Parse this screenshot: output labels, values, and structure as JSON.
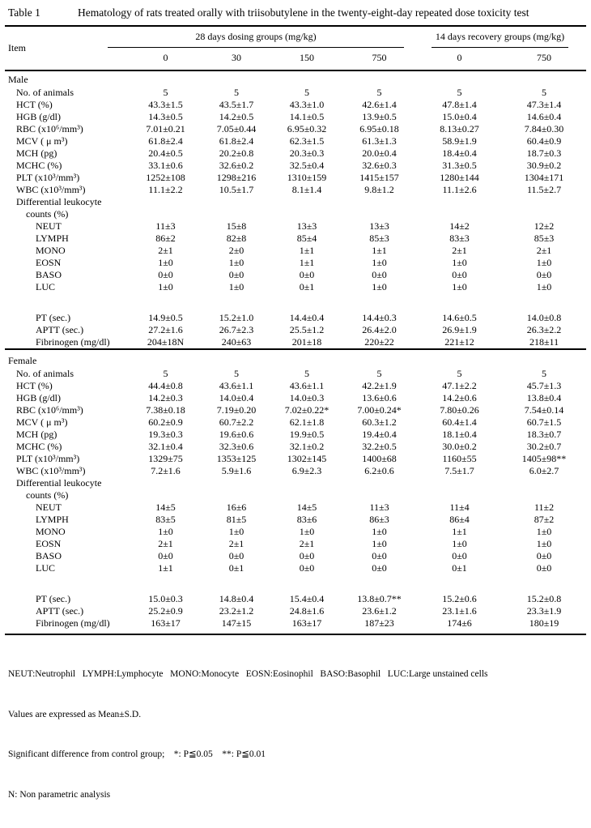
{
  "table": {
    "label": "Table 1",
    "title": "Hematology of rats treated orally with triisobutylene in the twenty-eight-day repeated dose toxicity test",
    "item_header": "Item",
    "group_headers": [
      "28 days dosing groups (mg/kg)",
      "14 days recovery groups (mg/kg)"
    ],
    "doses": [
      "0",
      "30",
      "150",
      "750",
      "0",
      "750"
    ],
    "colors": {
      "text": "#000000",
      "background": "#ffffff",
      "rule": "#000000"
    },
    "sections": [
      {
        "name": "Male",
        "rows": [
          {
            "label": "No. of animals",
            "indent": 1,
            "values": [
              "5",
              "5",
              "5",
              "5",
              "5",
              "5"
            ]
          },
          {
            "label": "HCT (%)",
            "indent": 1,
            "values": [
              "43.3±1.5",
              "43.5±1.7",
              "43.3±1.0",
              "42.6±1.4",
              "47.8±1.4",
              "47.3±1.4"
            ]
          },
          {
            "label": "HGB (g/dl)",
            "indent": 1,
            "values": [
              "14.3±0.5",
              "14.2±0.5",
              "14.1±0.5",
              "13.9±0.5",
              "15.0±0.4",
              "14.6±0.4"
            ]
          },
          {
            "label": "RBC (x10⁶/mm³)",
            "indent": 1,
            "values": [
              "7.01±0.21",
              "7.05±0.44",
              "6.95±0.32",
              "6.95±0.18",
              "8.13±0.27",
              "7.84±0.30"
            ]
          },
          {
            "label": "MCV ( μ m³)",
            "indent": 1,
            "values": [
              "61.8±2.4",
              "61.8±2.4",
              "62.3±1.5",
              "61.3±1.3",
              "58.9±1.9",
              "60.4±0.9"
            ]
          },
          {
            "label": "MCH (pg)",
            "indent": 1,
            "values": [
              "20.4±0.5",
              "20.2±0.8",
              "20.3±0.3",
              "20.0±0.4",
              "18.4±0.4",
              "18.7±0.3"
            ]
          },
          {
            "label": "MCHC (%)",
            "indent": 1,
            "values": [
              "33.1±0.6",
              "32.6±0.2",
              "32.5±0.4",
              "32.6±0.3",
              "31.3±0.5",
              "30.9±0.2"
            ]
          },
          {
            "label": "PLT (x10³/mm³)",
            "indent": 1,
            "values": [
              "1252±108",
              "1298±216",
              "1310±159",
              "1415±157",
              "1280±144",
              "1304±171"
            ]
          },
          {
            "label": "WBC (x10³/mm³)",
            "indent": 1,
            "values": [
              "11.1±2.2",
              "10.5±1.7",
              "8.1±1.4",
              "9.8±1.2",
              "11.1±2.6",
              "11.5±2.7"
            ]
          },
          {
            "label": "Differential leukocyte",
            "indent": 1,
            "values": [
              "",
              "",
              "",
              "",
              "",
              ""
            ]
          },
          {
            "label": "counts (%)",
            "indent": 2,
            "values": [
              "",
              "",
              "",
              "",
              "",
              ""
            ]
          },
          {
            "label": "NEUT",
            "indent": 3,
            "values": [
              "11±3",
              "15±8",
              "13±3",
              "13±3",
              "14±2",
              "12±2"
            ]
          },
          {
            "label": "LYMPH",
            "indent": 3,
            "values": [
              "86±2",
              "82±8",
              "85±4",
              "85±3",
              "83±3",
              "85±3"
            ]
          },
          {
            "label": "MONO",
            "indent": 3,
            "values": [
              "2±1",
              "2±0",
              "1±1",
              "1±1",
              "2±1",
              "2±1"
            ]
          },
          {
            "label": "EOSN",
            "indent": 3,
            "values": [
              "1±0",
              "1±0",
              "1±1",
              "1±0",
              "1±0",
              "1±0"
            ]
          },
          {
            "label": "BASO",
            "indent": 3,
            "values": [
              "0±0",
              "0±0",
              "0±0",
              "0±0",
              "0±0",
              "0±0"
            ]
          },
          {
            "label": "LUC",
            "indent": 3,
            "values": [
              "1±0",
              "1±0",
              "0±1",
              "1±0",
              "1±0",
              "1±0"
            ]
          },
          {
            "label": "",
            "indent": 0,
            "spacer": true,
            "values": [
              "",
              "",
              "",
              "",
              "",
              ""
            ]
          },
          {
            "label": "PT (sec.)",
            "indent": 3,
            "values": [
              "14.9±0.5",
              "15.2±1.0",
              "14.4±0.4",
              "14.4±0.3",
              "14.6±0.5",
              "14.0±0.8"
            ]
          },
          {
            "label": "APTT (sec.)",
            "indent": 3,
            "values": [
              "27.2±1.6",
              "26.7±2.3",
              "25.5±1.2",
              "26.4±2.0",
              "26.9±1.9",
              "26.3±2.2"
            ]
          },
          {
            "label": "Fibrinogen (mg/dl)",
            "indent": 3,
            "values": [
              "204±18N",
              "240±63",
              "201±18",
              "220±22",
              "221±12",
              "218±11"
            ]
          }
        ]
      },
      {
        "name": "Female",
        "rows": [
          {
            "label": "No. of animals",
            "indent": 1,
            "values": [
              "5",
              "5",
              "5",
              "5",
              "5",
              "5"
            ]
          },
          {
            "label": "HCT (%)",
            "indent": 1,
            "values": [
              "44.4±0.8",
              "43.6±1.1",
              "43.6±1.1",
              "42.2±1.9",
              "47.1±2.2",
              "45.7±1.3"
            ]
          },
          {
            "label": "HGB (g/dl)",
            "indent": 1,
            "values": [
              "14.2±0.3",
              "14.0±0.4",
              "14.0±0.3",
              "13.6±0.6",
              "14.2±0.6",
              "13.8±0.4"
            ]
          },
          {
            "label": "RBC (x10⁶/mm³)",
            "indent": 1,
            "values": [
              "7.38±0.18",
              "7.19±0.20",
              "7.02±0.22*",
              "7.00±0.24*",
              "7.80±0.26",
              "7.54±0.14"
            ]
          },
          {
            "label": "MCV ( μ m³)",
            "indent": 1,
            "values": [
              "60.2±0.9",
              "60.7±2.2",
              "62.1±1.8",
              "60.3±1.2",
              "60.4±1.4",
              "60.7±1.5"
            ]
          },
          {
            "label": "MCH (pg)",
            "indent": 1,
            "values": [
              "19.3±0.3",
              "19.6±0.6",
              "19.9±0.5",
              "19.4±0.4",
              "18.1±0.4",
              "18.3±0.7"
            ]
          },
          {
            "label": "MCHC (%)",
            "indent": 1,
            "values": [
              "32.1±0.4",
              "32.3±0.6",
              "32.1±0.2",
              "32.2±0.5",
              "30.0±0.2",
              "30.2±0.7"
            ]
          },
          {
            "label": "PLT (x10³/mm³)",
            "indent": 1,
            "values": [
              "1329±75",
              "1353±125",
              "1302±145",
              "1400±68",
              "1160±55",
              "1405±98**"
            ]
          },
          {
            "label": "WBC (x10³/mm³)",
            "indent": 1,
            "values": [
              "7.2±1.6",
              "5.9±1.6",
              "6.9±2.3",
              "6.2±0.6",
              "7.5±1.7",
              "6.0±2.7"
            ]
          },
          {
            "label": "Differential leukocyte",
            "indent": 1,
            "values": [
              "",
              "",
              "",
              "",
              "",
              ""
            ]
          },
          {
            "label": "counts (%)",
            "indent": 2,
            "values": [
              "",
              "",
              "",
              "",
              "",
              ""
            ]
          },
          {
            "label": "NEUT",
            "indent": 3,
            "values": [
              "14±5",
              "16±6",
              "14±5",
              "11±3",
              "11±4",
              "11±2"
            ]
          },
          {
            "label": "LYMPH",
            "indent": 3,
            "values": [
              "83±5",
              "81±5",
              "83±6",
              "86±3",
              "86±4",
              "87±2"
            ]
          },
          {
            "label": "MONO",
            "indent": 3,
            "values": [
              "1±0",
              "1±0",
              "1±0",
              "1±0",
              "1±1",
              "1±0"
            ]
          },
          {
            "label": "EOSN",
            "indent": 3,
            "values": [
              "2±1",
              "2±1",
              "2±1",
              "1±0",
              "1±0",
              "1±0"
            ]
          },
          {
            "label": "BASO",
            "indent": 3,
            "values": [
              "0±0",
              "0±0",
              "0±0",
              "0±0",
              "0±0",
              "0±0"
            ]
          },
          {
            "label": "LUC",
            "indent": 3,
            "values": [
              "1±1",
              "0±1",
              "0±0",
              "0±0",
              "0±1",
              "0±0"
            ]
          },
          {
            "label": "",
            "indent": 0,
            "spacer": true,
            "values": [
              "",
              "",
              "",
              "",
              "",
              ""
            ]
          },
          {
            "label": "PT (sec.)",
            "indent": 3,
            "values": [
              "15.0±0.3",
              "14.8±0.4",
              "15.4±0.4",
              "13.8±0.7**",
              "15.2±0.6",
              "15.2±0.8"
            ]
          },
          {
            "label": "APTT (sec.)",
            "indent": 3,
            "values": [
              "25.2±0.9",
              "23.2±1.2",
              "24.8±1.6",
              "23.6±1.2",
              "23.1±1.6",
              "23.3±1.9"
            ]
          },
          {
            "label": "Fibrinogen (mg/dl)",
            "indent": 3,
            "values": [
              "163±17",
              "147±15",
              "163±17",
              "187±23",
              "174±6",
              "180±19"
            ]
          }
        ]
      }
    ],
    "footnotes": [
      "NEUT:Neutrophil   LYMPH:Lymphocyte   MONO:Monocyte   EOSN:Eosinophil   BASO:Basophil   LUC:Large unstained cells",
      "Values are expressed as Mean±S.D.",
      "Significant difference from control group;    *: P≦0.05    **: P≦0.01",
      "N: Non parametric analysis"
    ]
  }
}
